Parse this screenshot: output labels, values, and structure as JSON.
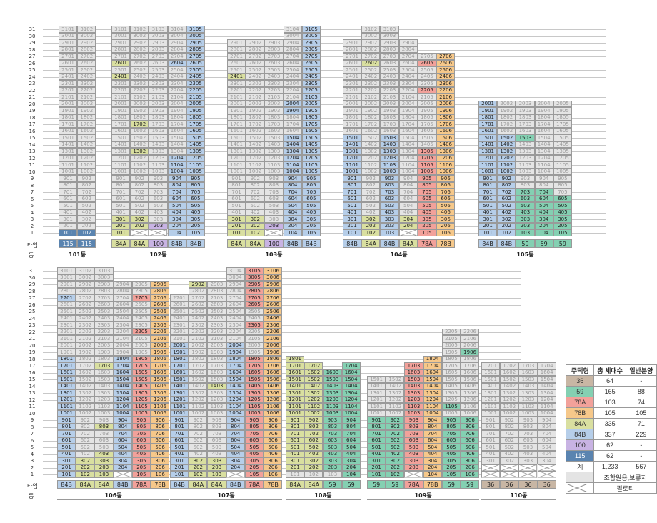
{
  "colors": {
    "84A": "#d9dfa0",
    "84B": "#b6cee9",
    "59": "#84d0b2",
    "78A": "#f2a19a",
    "78B": "#f6c88a",
    "100": "#c8b3e3",
    "115": "#5a84b0",
    "36": "#c8b6a4",
    "grey": "#e4e4e4",
    "cross": "#ffffff"
  },
  "row_headers": {
    "type": "타입",
    "building": "동"
  },
  "legend": {
    "headers": [
      "주택형",
      "총 세대수",
      "일반분양"
    ],
    "rows": [
      {
        "type": "36",
        "total": "64",
        "general": "-"
      },
      {
        "type": "59",
        "total": "165",
        "general": "88"
      },
      {
        "type": "78A",
        "total": "103",
        "general": "74"
      },
      {
        "type": "78B",
        "total": "105",
        "general": "105"
      },
      {
        "type": "84A",
        "total": "335",
        "general": "71"
      },
      {
        "type": "84B",
        "total": "337",
        "general": "229"
      },
      {
        "type": "100",
        "total": "62",
        "general": "-"
      },
      {
        "type": "115",
        "total": "62",
        "general": "-"
      },
      {
        "type": "계",
        "total": "1,233",
        "general": "567"
      }
    ],
    "grey_label": "조합원용,보류지",
    "cross_label": "필로티"
  },
  "rental_label": "임대",
  "buildings": [
    {
      "name": "101동",
      "types": [
        "115",
        "115"
      ],
      "floors": [
        1,
        31
      ],
      "cols": [
        {
          "type": "115",
          "low": 1,
          "high": 31,
          "color_from": 1,
          "color_to": 31,
          "colored": [
            {
              "from": 1,
              "to": 1
            }
          ]
        },
        {
          "type": "115",
          "low": 1,
          "high": 31,
          "colored": [
            {
              "from": 1,
              "to": 1
            }
          ]
        }
      ]
    },
    {
      "name": "102동",
      "types": [
        "84A",
        "84A",
        "100",
        "84B",
        "84B"
      ],
      "cols": [
        {
          "type": "84A",
          "low": 1,
          "high": 31,
          "colored": [
            {
              "from": 1,
              "to": 3
            },
            {
              "from": 24,
              "to": 24
            },
            {
              "from": 26,
              "to": 26
            }
          ]
        },
        {
          "type": "84A",
          "low": 2,
          "high": 31,
          "pilotis": true,
          "colored": [
            {
              "from": 2,
              "to": 3
            },
            {
              "from": 13,
              "to": 13
            },
            {
              "from": 17,
              "to": 17
            }
          ]
        },
        {
          "type": "100",
          "low": 2,
          "high": 31,
          "pilotis": true,
          "colored": [
            {
              "from": 2,
              "to": 2
            }
          ]
        },
        {
          "type": "84B",
          "low": 1,
          "high": 31,
          "colored": [
            {
              "from": 1,
              "to": 12
            },
            {
              "from": 26,
              "to": 26
            }
          ]
        },
        {
          "type": "84B",
          "low": 1,
          "high": 31,
          "colored": [
            {
              "from": 1,
              "to": 31
            }
          ]
        }
      ]
    },
    {
      "name": "103동",
      "types": [
        "84A",
        "84A",
        "100",
        "84B",
        "84B"
      ],
      "cols": [
        {
          "type": "84A",
          "low": 1,
          "high": 29,
          "colored": [
            {
              "from": 1,
              "to": 3
            },
            {
              "from": 24,
              "to": 24
            }
          ]
        },
        {
          "type": "84A",
          "low": 1,
          "high": 29,
          "colored": [
            {
              "from": 1,
              "to": 3
            }
          ]
        },
        {
          "type": "100",
          "low": 2,
          "high": 29,
          "pilotis": true,
          "colored": [
            {
              "from": 2,
              "to": 2
            }
          ]
        },
        {
          "type": "84B",
          "low": 1,
          "high": 31,
          "colored": [
            {
              "from": 1,
              "to": 15
            },
            {
              "from": 19,
              "to": 20
            }
          ]
        },
        {
          "type": "84B",
          "low": 1,
          "high": 31,
          "colored": [
            {
              "from": 1,
              "to": 31
            }
          ]
        }
      ]
    },
    {
      "name": "104동",
      "types": [
        "84B",
        "84A",
        "84B",
        "84A",
        "78A",
        "78B"
      ],
      "cols": [
        {
          "type": "84B",
          "low": 1,
          "high": 29,
          "colored": [
            {
              "from": 1,
              "to": 15
            }
          ]
        },
        {
          "type": "84A",
          "low": 1,
          "high": 31,
          "colored": [
            {
              "from": 1,
              "to": 3
            },
            {
              "from": 26,
              "to": 26
            }
          ]
        },
        {
          "type": "84B",
          "low": 1,
          "high": 31,
          "colored": [
            {
              "from": 1,
              "to": 15
            }
          ]
        },
        {
          "type": "84A",
          "low": 2,
          "high": 29,
          "pilotis": true,
          "colored": [
            {
              "from": 2,
              "to": 3
            }
          ]
        },
        {
          "type": "78A",
          "low": 1,
          "high": 27,
          "colored": [
            {
              "from": 1,
              "to": 13
            },
            {
              "from": 22,
              "to": 22
            },
            {
              "from": 26,
              "to": 26
            }
          ]
        },
        {
          "type": "78B",
          "low": 1,
          "high": 27,
          "colored": [
            {
              "from": 1,
              "to": 27
            }
          ]
        }
      ]
    },
    {
      "name": "105동",
      "types": [
        "84B",
        "84B",
        "59",
        "59",
        "59"
      ],
      "cols": [
        {
          "type": "84B",
          "low": 1,
          "high": 20,
          "colored": [
            {
              "from": 1,
              "to": 20
            }
          ]
        },
        {
          "type": "84B",
          "low": 1,
          "high": 20,
          "colored": [
            {
              "from": 1,
              "to": 15
            }
          ]
        },
        {
          "type": "59",
          "low": 1,
          "high": 20,
          "colored": [
            {
              "from": 1,
              "to": 7
            },
            {
              "from": 15,
              "to": 15
            }
          ]
        },
        {
          "type": "59",
          "low": 1,
          "high": 20,
          "colored": [
            {
              "from": 1,
              "to": 7
            }
          ]
        },
        {
          "type": "59",
          "low": 1,
          "high": 20,
          "colored": [
            {
              "from": 1,
              "to": 6
            }
          ]
        }
      ]
    },
    {
      "name": "106동",
      "types": [
        "84B",
        "84A",
        "84A",
        "84B",
        "78A",
        "78B"
      ],
      "cols": [
        {
          "type": "84B",
          "low": 1,
          "high": 31,
          "colored": [
            {
              "from": 1,
              "to": 18
            },
            {
              "from": 27,
              "to": 27
            }
          ]
        },
        {
          "type": "84A",
          "low": 1,
          "high": 31,
          "colored": [
            {
              "from": 1,
              "to": 3
            }
          ]
        },
        {
          "type": "84A",
          "low": 1,
          "high": 31,
          "colored": [
            {
              "from": 1,
              "to": 4
            },
            {
              "from": 8,
              "to": 8
            },
            {
              "from": 17,
              "to": 17
            }
          ]
        },
        {
          "type": "84B",
          "low": 2,
          "high": 29,
          "pilotis": true,
          "colored": [
            {
              "from": 2,
              "to": 18
            }
          ]
        },
        {
          "type": "78A",
          "low": 1,
          "high": 29,
          "colored": [
            {
              "from": 1,
              "to": 18
            },
            {
              "from": 22,
              "to": 22
            },
            {
              "from": 27,
              "to": 27
            }
          ]
        },
        {
          "type": "78B",
          "low": 1,
          "high": 29,
          "colored": [
            {
              "from": 1,
              "to": 29
            }
          ]
        }
      ]
    },
    {
      "name": "107동",
      "types": [
        "84B",
        "84A",
        "84A",
        "84B",
        "78A",
        "78B"
      ],
      "cols": [
        {
          "type": "84B",
          "low": 1,
          "high": 27,
          "colored": [
            {
              "from": 1,
              "to": 20
            }
          ]
        },
        {
          "type": "84A",
          "low": 1,
          "high": 29,
          "colored": [
            {
              "from": 1,
              "to": 3
            },
            {
              "from": 29,
              "to": 29
            }
          ]
        },
        {
          "type": "84A",
          "low": 1,
          "high": 29,
          "colored": [
            {
              "from": 1,
              "to": 3
            },
            {
              "from": 14,
              "to": 14
            }
          ]
        },
        {
          "type": "84B",
          "low": 2,
          "high": 31,
          "pilotis": true,
          "colored": [
            {
              "from": 2,
              "to": 20
            }
          ]
        },
        {
          "type": "78A",
          "low": 1,
          "high": 31,
          "colored": [
            {
              "from": 1,
              "to": 18
            },
            {
              "from": 23,
              "to": 23
            },
            {
              "from": 26,
              "to": 31
            }
          ]
        },
        {
          "type": "78B",
          "low": 1,
          "high": 31,
          "colored": [
            {
              "from": 1,
              "to": 31
            }
          ]
        }
      ]
    },
    {
      "name": "108동",
      "types": [
        "84A",
        "84A",
        "59",
        "59"
      ],
      "cols": [
        {
          "type": "84A",
          "low": 1,
          "high": 18,
          "colored": [
            {
              "from": 2,
              "to": 18
            }
          ]
        },
        {
          "type": "84A",
          "low": 1,
          "high": 17,
          "colored": [
            {
              "from": 2,
              "to": 17
            }
          ]
        },
        {
          "type": "59",
          "low": 1,
          "high": 16,
          "colored": [
            {
              "from": 2,
              "to": 16
            }
          ]
        },
        {
          "type": "59",
          "low": 1,
          "high": 17,
          "colored": [
            {
              "from": 1,
              "to": 17
            }
          ]
        }
      ]
    },
    {
      "name": "109동",
      "types": [
        "59",
        "59",
        "78A",
        "78B",
        "59",
        "59"
      ],
      "cols": [
        {
          "type": "59",
          "low": 1,
          "high": 15,
          "colored": [
            {
              "from": 1,
              "to": 9
            }
          ]
        },
        {
          "type": "59",
          "low": 1,
          "high": 15,
          "colored": [
            {
              "from": 1,
              "to": 9
            }
          ]
        },
        {
          "type": "78A",
          "low": 2,
          "high": 17,
          "pilotis": true,
          "colored": [
            {
              "from": 2,
              "to": 17
            }
          ]
        },
        {
          "type": "78B",
          "low": 1,
          "high": 18,
          "colored": [
            {
              "from": 1,
              "to": 18
            }
          ]
        },
        {
          "type": "59",
          "low": 1,
          "high": 22,
          "colored": [
            {
              "from": 1,
              "to": 9
            },
            {
              "from": 11,
              "to": 11
            }
          ]
        },
        {
          "type": "59",
          "low": 1,
          "high": 22,
          "colored": [
            {
              "from": 1,
              "to": 9
            },
            {
              "from": 19,
              "to": 19
            }
          ]
        }
      ]
    },
    {
      "name": "110동",
      "types": [
        "36",
        "36",
        "36",
        "36"
      ],
      "rental": true,
      "cols": [
        {
          "type": "36",
          "low": 3,
          "high": 17,
          "pilotis": true,
          "colored": []
        },
        {
          "type": "36",
          "low": 3,
          "high": 17,
          "pilotis": true,
          "colored": []
        },
        {
          "type": "36",
          "low": 3,
          "high": 17,
          "pilotis": true,
          "colored": []
        },
        {
          "type": "36",
          "low": 3,
          "high": 17,
          "pilotis": true,
          "colored": []
        }
      ]
    }
  ]
}
